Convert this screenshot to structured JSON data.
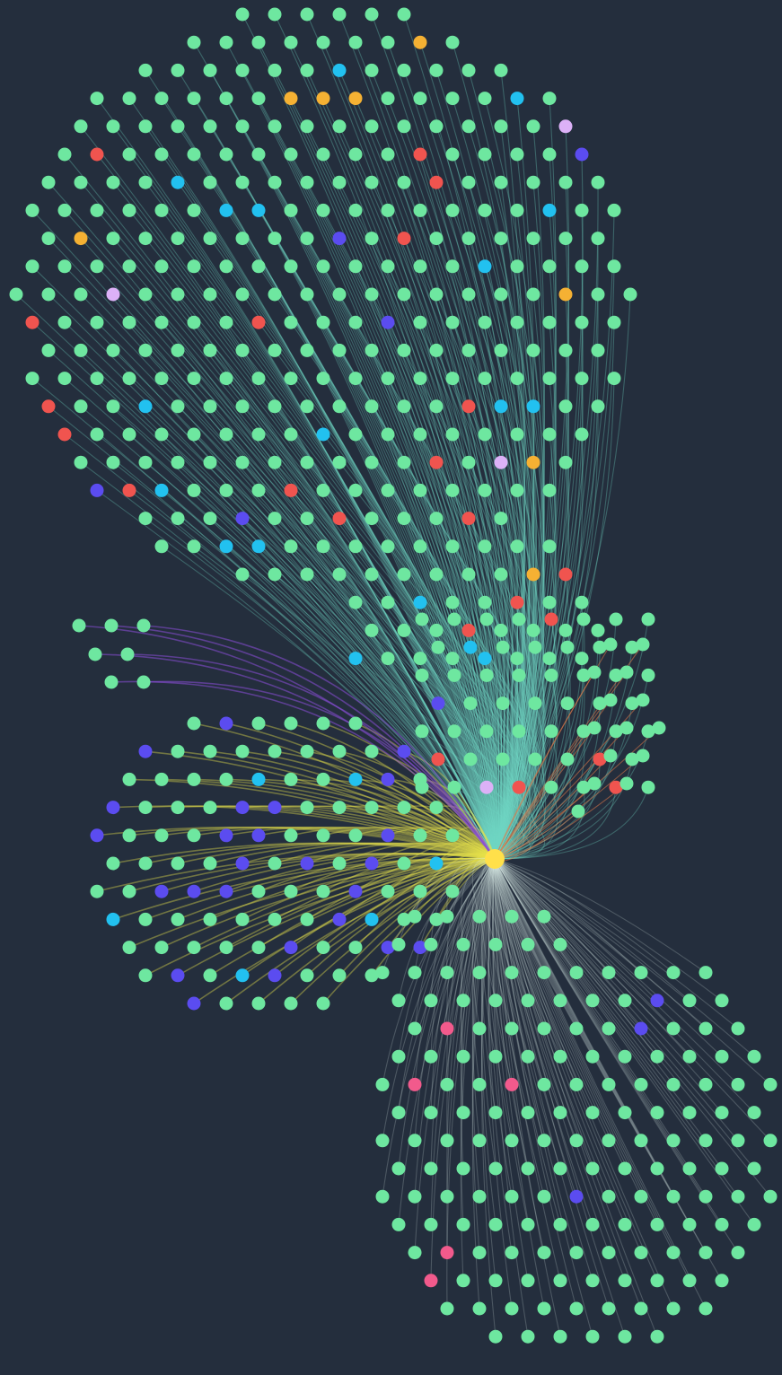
{
  "graph": {
    "background_color": "#242e3d",
    "center_node_color": "#ffe04a",
    "node_colors": {
      "default": "#6ee7a0",
      "red": "#f0544f",
      "cyan": "#22c1f0",
      "orange": "#f5b133",
      "violet": "#5b4cf0",
      "lilac": "#dcb1f7",
      "pink": "#f25a8c"
    },
    "clusters": [
      {
        "id": "top",
        "description_color": "teal",
        "link_color": "#6fd8c4",
        "link_opacity": 0.32,
        "node_count": 440
      },
      {
        "id": "left",
        "description_color": "yellow",
        "link_color": "#e7e04a",
        "link_opacity": 0.4,
        "node_count": 170
      },
      {
        "id": "upper-left",
        "description_color": "purple",
        "link_color": "#8a4fd8",
        "link_opacity": 0.55,
        "node_count": 7
      },
      {
        "id": "right",
        "description_color": "orange",
        "link_color": "#e07a48",
        "link_opacity": 0.55,
        "node_count": 14
      },
      {
        "id": "bottom",
        "description_color": "white",
        "link_color": "#d9efe9",
        "link_opacity": 0.22,
        "node_count": 250
      }
    ]
  }
}
